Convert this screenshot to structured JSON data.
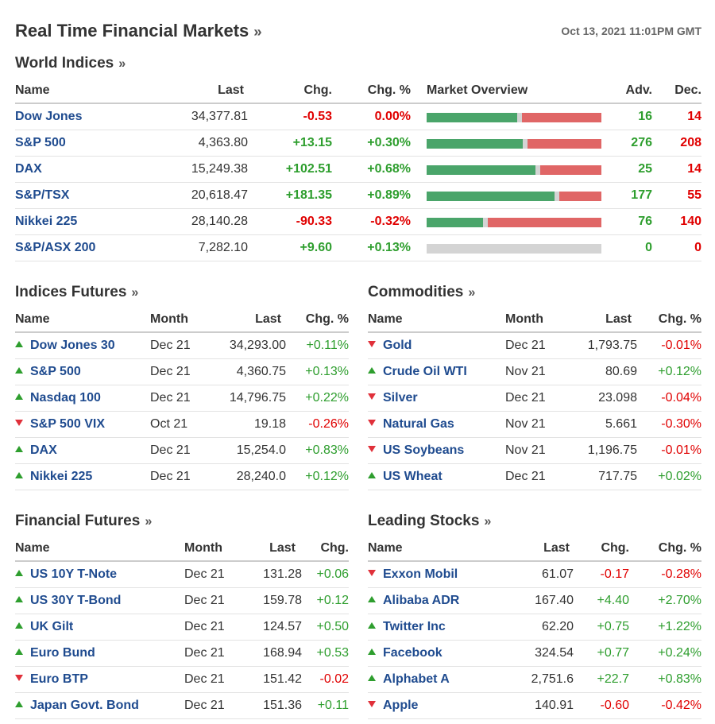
{
  "header": {
    "title": "Real Time Financial Markets",
    "timestamp": "Oct 13, 2021 11:01PM GMT"
  },
  "colors": {
    "up": "#2e9e2e",
    "down": "#e00000",
    "link": "#1f4b8f",
    "bar_adv": "#4aa56a",
    "bar_dec": "#e06666",
    "bar_empty": "#d4d4d4"
  },
  "world_indices": {
    "title": "World Indices",
    "columns": [
      "Name",
      "Last",
      "Chg.",
      "Chg. %",
      "Market Overview",
      "Adv.",
      "Dec."
    ],
    "rows": [
      {
        "name": "Dow Jones",
        "last": "34,377.81",
        "chg": "-0.53",
        "chg_pct": "0.00%",
        "adv": "16",
        "dec": "14",
        "dir": "down",
        "pct_dir": "down",
        "adv_share": 0.525
      },
      {
        "name": "S&P 500",
        "last": "4,363.80",
        "chg": "+13.15",
        "chg_pct": "+0.30%",
        "adv": "276",
        "dec": "208",
        "dir": "up",
        "pct_dir": "up",
        "adv_share": 0.56
      },
      {
        "name": "DAX",
        "last": "15,249.38",
        "chg": "+102.51",
        "chg_pct": "+0.68%",
        "adv": "25",
        "dec": "14",
        "dir": "up",
        "pct_dir": "up",
        "adv_share": 0.63
      },
      {
        "name": "S&P/TSX",
        "last": "20,618.47",
        "chg": "+181.35",
        "chg_pct": "+0.89%",
        "adv": "177",
        "dec": "55",
        "dir": "up",
        "pct_dir": "up",
        "adv_share": 0.74
      },
      {
        "name": "Nikkei 225",
        "last": "28,140.28",
        "chg": "-90.33",
        "chg_pct": "-0.32%",
        "adv": "76",
        "dec": "140",
        "dir": "down",
        "pct_dir": "down",
        "adv_share": 0.33
      },
      {
        "name": "S&P/ASX 200",
        "last": "7,282.10",
        "chg": "+9.60",
        "chg_pct": "+0.13%",
        "adv": "0",
        "dec": "0",
        "dir": "up",
        "pct_dir": "up",
        "adv_share": null
      }
    ]
  },
  "indices_futures": {
    "title": "Indices Futures",
    "columns": [
      "Name",
      "Month",
      "Last",
      "Chg. %"
    ],
    "rows": [
      {
        "name": "Dow Jones 30",
        "month": "Dec 21",
        "last": "34,293.00",
        "chg_pct": "+0.11%",
        "dir": "up"
      },
      {
        "name": "S&P 500",
        "month": "Dec 21",
        "last": "4,360.75",
        "chg_pct": "+0.13%",
        "dir": "up"
      },
      {
        "name": "Nasdaq 100",
        "month": "Dec 21",
        "last": "14,796.75",
        "chg_pct": "+0.22%",
        "dir": "up"
      },
      {
        "name": "S&P 500 VIX",
        "month": "Oct 21",
        "last": "19.18",
        "chg_pct": "-0.26%",
        "dir": "down"
      },
      {
        "name": "DAX",
        "month": "Dec 21",
        "last": "15,254.0",
        "chg_pct": "+0.83%",
        "dir": "up"
      },
      {
        "name": "Nikkei 225",
        "month": "Dec 21",
        "last": "28,240.0",
        "chg_pct": "+0.12%",
        "dir": "up"
      }
    ]
  },
  "commodities": {
    "title": "Commodities",
    "columns": [
      "Name",
      "Month",
      "Last",
      "Chg. %"
    ],
    "rows": [
      {
        "name": "Gold",
        "month": "Dec 21",
        "last": "1,793.75",
        "chg_pct": "-0.01%",
        "dir": "down"
      },
      {
        "name": "Crude Oil WTI",
        "month": "Nov 21",
        "last": "80.69",
        "chg_pct": "+0.12%",
        "dir": "up"
      },
      {
        "name": "Silver",
        "month": "Dec 21",
        "last": "23.098",
        "chg_pct": "-0.04%",
        "dir": "down"
      },
      {
        "name": "Natural Gas",
        "month": "Nov 21",
        "last": "5.661",
        "chg_pct": "-0.30%",
        "dir": "down"
      },
      {
        "name": "US Soybeans",
        "month": "Nov 21",
        "last": "1,196.75",
        "chg_pct": "-0.01%",
        "dir": "down"
      },
      {
        "name": "US Wheat",
        "month": "Dec 21",
        "last": "717.75",
        "chg_pct": "+0.02%",
        "dir": "up"
      }
    ]
  },
  "financial_futures": {
    "title": "Financial Futures",
    "columns": [
      "Name",
      "Month",
      "Last",
      "Chg."
    ],
    "rows": [
      {
        "name": "US 10Y T-Note",
        "month": "Dec 21",
        "last": "131.28",
        "chg": "+0.06",
        "dir": "up"
      },
      {
        "name": "US 30Y T-Bond",
        "month": "Dec 21",
        "last": "159.78",
        "chg": "+0.12",
        "dir": "up"
      },
      {
        "name": "UK Gilt",
        "month": "Dec 21",
        "last": "124.57",
        "chg": "+0.50",
        "dir": "up"
      },
      {
        "name": "Euro Bund",
        "month": "Dec 21",
        "last": "168.94",
        "chg": "+0.53",
        "dir": "up"
      },
      {
        "name": "Euro BTP",
        "month": "Dec 21",
        "last": "151.42",
        "chg": "-0.02",
        "dir": "down"
      },
      {
        "name": "Japan Govt. Bond",
        "month": "Dec 21",
        "last": "151.36",
        "chg": "+0.11",
        "dir": "up"
      }
    ]
  },
  "leading_stocks": {
    "title": "Leading Stocks",
    "columns": [
      "Name",
      "Last",
      "Chg.",
      "Chg. %"
    ],
    "rows": [
      {
        "name": "Exxon Mobil",
        "last": "61.07",
        "chg": "-0.17",
        "chg_pct": "-0.28%",
        "dir": "down"
      },
      {
        "name": "Alibaba ADR",
        "last": "167.40",
        "chg": "+4.40",
        "chg_pct": "+2.70%",
        "dir": "up"
      },
      {
        "name": "Twitter Inc",
        "last": "62.20",
        "chg": "+0.75",
        "chg_pct": "+1.22%",
        "dir": "up"
      },
      {
        "name": "Facebook",
        "last": "324.54",
        "chg": "+0.77",
        "chg_pct": "+0.24%",
        "dir": "up"
      },
      {
        "name": "Alphabet A",
        "last": "2,751.6",
        "chg": "+22.7",
        "chg_pct": "+0.83%",
        "dir": "up"
      },
      {
        "name": "Apple",
        "last": "140.91",
        "chg": "-0.60",
        "chg_pct": "-0.42%",
        "dir": "down"
      }
    ]
  }
}
